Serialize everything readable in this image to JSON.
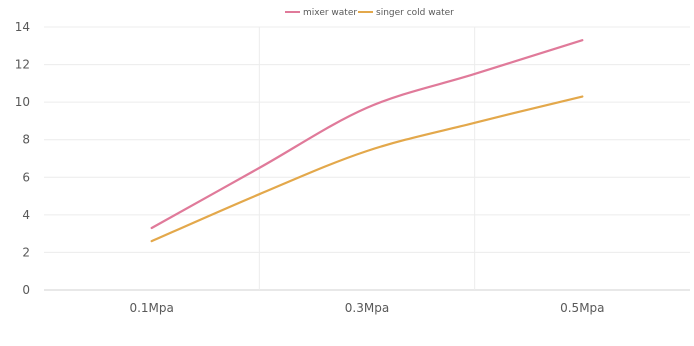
{
  "chart_data": {
    "type": "line",
    "categories": [
      "0.1Mpa",
      "0.3Mpa",
      "0.5Mpa"
    ],
    "series": [
      {
        "name": "mixer water",
        "color": "#e07a9a",
        "values": [
          3.3,
          9.7,
          13.3
        ]
      },
      {
        "name": "singer cold water",
        "color": "#e3a84b",
        "values": [
          2.6,
          7.4,
          10.3
        ]
      }
    ],
    "series_samples": [
      {
        "name": "mixer water",
        "x": [
          0,
          0.5,
          1,
          1.5,
          2
        ],
        "y": [
          3.3,
          6.5,
          9.7,
          11.5,
          13.3
        ]
      },
      {
        "name": "singer cold water",
        "x": [
          0,
          0.5,
          1,
          1.5,
          2
        ],
        "y": [
          2.6,
          5.1,
          7.4,
          8.9,
          10.3
        ]
      }
    ],
    "yticks": [
      "0",
      "2",
      "4",
      "6",
      "8",
      "10",
      "12",
      "14"
    ],
    "ylim": [
      0,
      14
    ],
    "grid": true,
    "legend_position": "top-center"
  }
}
